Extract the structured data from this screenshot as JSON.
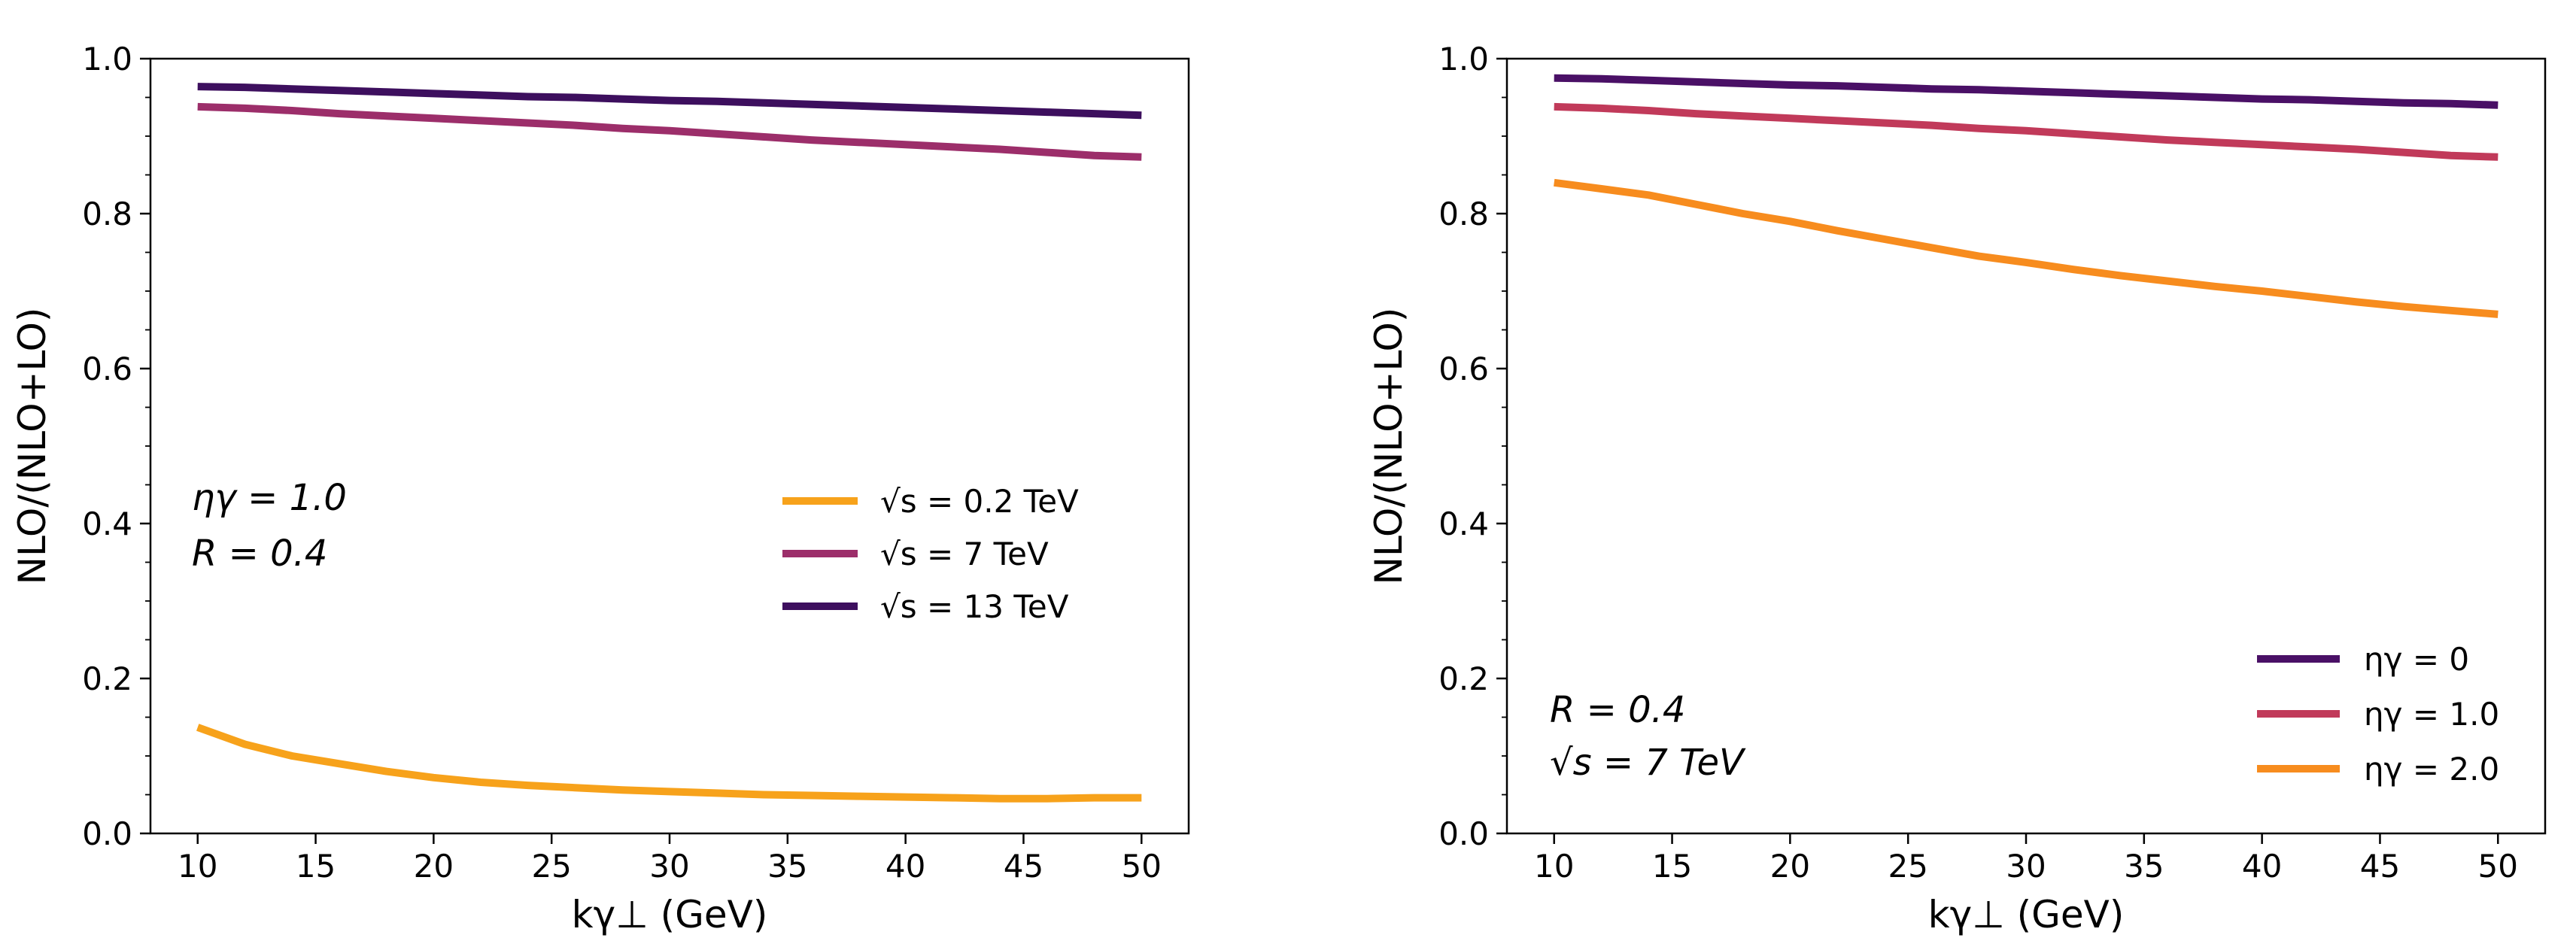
{
  "chart_data": [
    {
      "type": "line",
      "xlabel": "kγ⊥ (GeV)",
      "ylabel": "NLO/(NLO+LO)",
      "xlim": [
        8,
        52
      ],
      "ylim": [
        0.0,
        1.0
      ],
      "x_ticks": [
        "10",
        "15",
        "20",
        "25",
        "30",
        "35",
        "40",
        "45",
        "50"
      ],
      "y_ticks": [
        "0.0",
        "0.2",
        "0.4",
        "0.6",
        "0.8",
        "1.0"
      ],
      "legend_position": "center-right",
      "annotations": [
        "ηγ = 1.0",
        "R = 0.4"
      ],
      "x": [
        10,
        12,
        14,
        16,
        18,
        20,
        22,
        24,
        26,
        28,
        30,
        32,
        34,
        36,
        38,
        40,
        42,
        44,
        46,
        48,
        50
      ],
      "series": [
        {
          "name": "√s = 0.2 TeV",
          "color": "#f7a21b",
          "values": [
            0.137,
            0.115,
            0.1,
            0.09,
            0.08,
            0.072,
            0.066,
            0.062,
            0.059,
            0.056,
            0.054,
            0.052,
            0.05,
            0.049,
            0.048,
            0.047,
            0.046,
            0.045,
            0.045,
            0.046,
            0.046
          ]
        },
        {
          "name": "√s = 7 TeV",
          "color": "#9c2e6a",
          "values": [
            0.938,
            0.936,
            0.933,
            0.929,
            0.926,
            0.923,
            0.92,
            0.917,
            0.914,
            0.91,
            0.907,
            0.903,
            0.899,
            0.895,
            0.892,
            0.889,
            0.886,
            0.883,
            0.879,
            0.875,
            0.873
          ]
        },
        {
          "name": "√s = 13 TeV",
          "color": "#3d0f5e",
          "values": [
            0.964,
            0.963,
            0.961,
            0.959,
            0.957,
            0.955,
            0.953,
            0.951,
            0.95,
            0.948,
            0.946,
            0.945,
            0.943,
            0.941,
            0.939,
            0.937,
            0.935,
            0.933,
            0.931,
            0.929,
            0.927
          ]
        }
      ]
    },
    {
      "type": "line",
      "xlabel": "kγ⊥ (GeV)",
      "ylabel": "NLO/(NLO+LO)",
      "xlim": [
        8,
        52
      ],
      "ylim": [
        0.0,
        1.0
      ],
      "x_ticks": [
        "10",
        "15",
        "20",
        "25",
        "30",
        "35",
        "40",
        "45",
        "50"
      ],
      "y_ticks": [
        "0.0",
        "0.2",
        "0.4",
        "0.6",
        "0.8",
        "1.0"
      ],
      "legend_position": "lower-right",
      "annotations": [
        "R = 0.4",
        "√s = 7 TeV"
      ],
      "x": [
        10,
        12,
        14,
        16,
        18,
        20,
        22,
        24,
        26,
        28,
        30,
        32,
        34,
        36,
        38,
        40,
        42,
        44,
        46,
        48,
        50
      ],
      "series": [
        {
          "name": "ηγ = 0",
          "color": "#4a1066",
          "values": [
            0.975,
            0.974,
            0.972,
            0.97,
            0.968,
            0.966,
            0.965,
            0.963,
            0.961,
            0.96,
            0.958,
            0.956,
            0.954,
            0.952,
            0.95,
            0.948,
            0.947,
            0.945,
            0.943,
            0.942,
            0.94
          ]
        },
        {
          "name": "ηγ = 1.0",
          "color": "#c13a5a",
          "values": [
            0.938,
            0.936,
            0.933,
            0.929,
            0.926,
            0.923,
            0.92,
            0.917,
            0.914,
            0.91,
            0.907,
            0.903,
            0.899,
            0.895,
            0.892,
            0.889,
            0.886,
            0.883,
            0.879,
            0.875,
            0.873
          ]
        },
        {
          "name": "ηγ = 2.0",
          "color": "#f78c1e",
          "values": [
            0.84,
            0.832,
            0.824,
            0.812,
            0.8,
            0.79,
            0.778,
            0.767,
            0.756,
            0.745,
            0.737,
            0.728,
            0.72,
            0.713,
            0.706,
            0.7,
            0.693,
            0.686,
            0.68,
            0.675,
            0.67
          ]
        }
      ]
    }
  ]
}
